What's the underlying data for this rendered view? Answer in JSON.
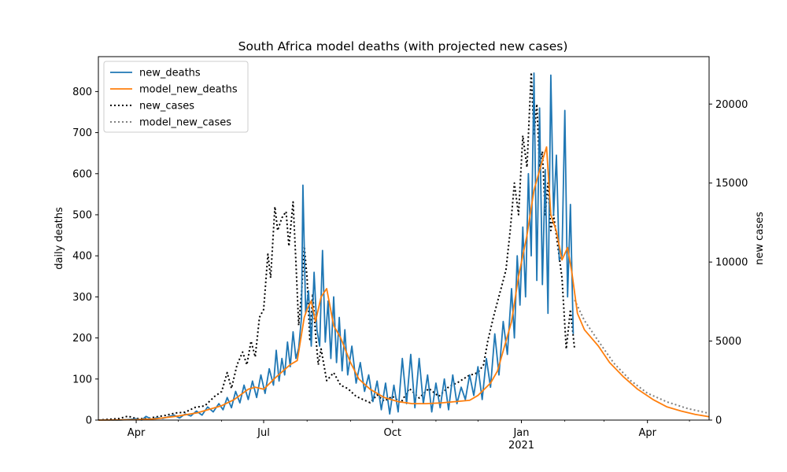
{
  "chart_data": {
    "type": "line",
    "title": "South Africa model deaths (with projected new cases)",
    "ylabel": "daily deaths",
    "y2label": "new cases",
    "xlim": [
      "2020-03-05",
      "2021-05-15"
    ],
    "ylim": [
      0,
      885
    ],
    "y2lim": [
      0,
      23000
    ],
    "x_ticks": [
      {
        "date": "2020-04-01",
        "label": "Apr"
      },
      {
        "date": "2020-07-01",
        "label": "Jul"
      },
      {
        "date": "2020-10-01",
        "label": "Oct"
      },
      {
        "date": "2021-01-01",
        "label": "Jan",
        "sublabel": "2021"
      },
      {
        "date": "2021-04-01",
        "label": "Apr"
      }
    ],
    "y_ticks": [
      0,
      100,
      200,
      300,
      400,
      500,
      600,
      700,
      800
    ],
    "y2_ticks": [
      0,
      5000,
      10000,
      15000,
      20000
    ],
    "legend_position": "top-left",
    "grid": false,
    "colors": {
      "new_deaths": "#1f77b4",
      "model_new_deaths": "#ff7f0e",
      "new_cases": "#000000",
      "model_new_cases": "#808080"
    },
    "series": [
      {
        "name": "new_deaths",
        "axis": "left",
        "style": "solid",
        "colorKey": "new_deaths",
        "points": [
          [
            "2020-03-05",
            0
          ],
          [
            "2020-03-20",
            0
          ],
          [
            "2020-03-28",
            2
          ],
          [
            "2020-04-01",
            3
          ],
          [
            "2020-04-05",
            0
          ],
          [
            "2020-04-08",
            9
          ],
          [
            "2020-04-12",
            2
          ],
          [
            "2020-04-16",
            6
          ],
          [
            "2020-04-20",
            4
          ],
          [
            "2020-04-24",
            8
          ],
          [
            "2020-04-28",
            12
          ],
          [
            "2020-05-02",
            5
          ],
          [
            "2020-05-06",
            15
          ],
          [
            "2020-05-10",
            10
          ],
          [
            "2020-05-14",
            22
          ],
          [
            "2020-05-18",
            12
          ],
          [
            "2020-05-22",
            32
          ],
          [
            "2020-05-26",
            20
          ],
          [
            "2020-05-30",
            40
          ],
          [
            "2020-06-02",
            25
          ],
          [
            "2020-06-05",
            55
          ],
          [
            "2020-06-08",
            30
          ],
          [
            "2020-06-11",
            70
          ],
          [
            "2020-06-14",
            42
          ],
          [
            "2020-06-17",
            85
          ],
          [
            "2020-06-20",
            50
          ],
          [
            "2020-06-23",
            95
          ],
          [
            "2020-06-26",
            55
          ],
          [
            "2020-06-29",
            110
          ],
          [
            "2020-07-02",
            65
          ],
          [
            "2020-07-05",
            125
          ],
          [
            "2020-07-08",
            85
          ],
          [
            "2020-07-10",
            170
          ],
          [
            "2020-07-12",
            95
          ],
          [
            "2020-07-14",
            150
          ],
          [
            "2020-07-16",
            110
          ],
          [
            "2020-07-18",
            190
          ],
          [
            "2020-07-20",
            130
          ],
          [
            "2020-07-22",
            215
          ],
          [
            "2020-07-24",
            150
          ],
          [
            "2020-07-26",
            175
          ],
          [
            "2020-07-28",
            250
          ],
          [
            "2020-07-29",
            572
          ],
          [
            "2020-07-31",
            260
          ],
          [
            "2020-08-02",
            315
          ],
          [
            "2020-08-04",
            180
          ],
          [
            "2020-08-06",
            360
          ],
          [
            "2020-08-08",
            220
          ],
          [
            "2020-08-10",
            180
          ],
          [
            "2020-08-12",
            413
          ],
          [
            "2020-08-14",
            190
          ],
          [
            "2020-08-16",
            290
          ],
          [
            "2020-08-18",
            150
          ],
          [
            "2020-08-20",
            300
          ],
          [
            "2020-08-22",
            140
          ],
          [
            "2020-08-24",
            250
          ],
          [
            "2020-08-26",
            120
          ],
          [
            "2020-08-28",
            220
          ],
          [
            "2020-08-30",
            110
          ],
          [
            "2020-09-02",
            180
          ],
          [
            "2020-09-05",
            90
          ],
          [
            "2020-09-08",
            140
          ],
          [
            "2020-09-11",
            70
          ],
          [
            "2020-09-14",
            110
          ],
          [
            "2020-09-17",
            45
          ],
          [
            "2020-09-20",
            95
          ],
          [
            "2020-09-23",
            25
          ],
          [
            "2020-09-26",
            90
          ],
          [
            "2020-09-29",
            15
          ],
          [
            "2020-10-02",
            85
          ],
          [
            "2020-10-05",
            20
          ],
          [
            "2020-10-08",
            150
          ],
          [
            "2020-10-11",
            40
          ],
          [
            "2020-10-14",
            160
          ],
          [
            "2020-10-17",
            30
          ],
          [
            "2020-10-20",
            150
          ],
          [
            "2020-10-23",
            40
          ],
          [
            "2020-10-26",
            110
          ],
          [
            "2020-10-29",
            20
          ],
          [
            "2020-11-01",
            90
          ],
          [
            "2020-11-04",
            30
          ],
          [
            "2020-11-07",
            100
          ],
          [
            "2020-11-10",
            25
          ],
          [
            "2020-11-13",
            110
          ],
          [
            "2020-11-16",
            40
          ],
          [
            "2020-11-19",
            80
          ],
          [
            "2020-11-22",
            50
          ],
          [
            "2020-11-25",
            110
          ],
          [
            "2020-11-28",
            60
          ],
          [
            "2020-12-01",
            130
          ],
          [
            "2020-12-04",
            50
          ],
          [
            "2020-12-07",
            150
          ],
          [
            "2020-12-10",
            80
          ],
          [
            "2020-12-13",
            210
          ],
          [
            "2020-12-16",
            110
          ],
          [
            "2020-12-19",
            240
          ],
          [
            "2020-12-22",
            160
          ],
          [
            "2020-12-25",
            320
          ],
          [
            "2020-12-27",
            200
          ],
          [
            "2020-12-29",
            400
          ],
          [
            "2020-12-31",
            280
          ],
          [
            "2021-01-02",
            470
          ],
          [
            "2021-01-04",
            300
          ],
          [
            "2021-01-06",
            600
          ],
          [
            "2021-01-08",
            400
          ],
          [
            "2021-01-10",
            845
          ],
          [
            "2021-01-12",
            340
          ],
          [
            "2021-01-14",
            760
          ],
          [
            "2021-01-16",
            330
          ],
          [
            "2021-01-18",
            610
          ],
          [
            "2021-01-20",
            260
          ],
          [
            "2021-01-22",
            840
          ],
          [
            "2021-01-24",
            500
          ],
          [
            "2021-01-26",
            645
          ],
          [
            "2021-01-28",
            390
          ],
          [
            "2021-01-30",
            400
          ],
          [
            "2021-02-01",
            754
          ],
          [
            "2021-02-03",
            300
          ],
          [
            "2021-02-05",
            525
          ],
          [
            "2021-02-07",
            210
          ]
        ]
      },
      {
        "name": "model_new_deaths",
        "axis": "left",
        "style": "solid",
        "colorKey": "model_new_deaths",
        "points": [
          [
            "2020-03-05",
            0
          ],
          [
            "2020-04-01",
            1
          ],
          [
            "2020-04-15",
            3
          ],
          [
            "2020-05-01",
            10
          ],
          [
            "2020-05-15",
            18
          ],
          [
            "2020-06-01",
            35
          ],
          [
            "2020-06-10",
            50
          ],
          [
            "2020-06-20",
            75
          ],
          [
            "2020-06-25",
            80
          ],
          [
            "2020-07-01",
            75
          ],
          [
            "2020-07-10",
            105
          ],
          [
            "2020-07-20",
            135
          ],
          [
            "2020-07-25",
            145
          ],
          [
            "2020-07-30",
            250
          ],
          [
            "2020-08-01",
            270
          ],
          [
            "2020-08-04",
            290
          ],
          [
            "2020-08-07",
            240
          ],
          [
            "2020-08-11",
            300
          ],
          [
            "2020-08-15",
            320
          ],
          [
            "2020-08-20",
            230
          ],
          [
            "2020-08-25",
            200
          ],
          [
            "2020-09-01",
            140
          ],
          [
            "2020-09-07",
            100
          ],
          [
            "2020-09-15",
            75
          ],
          [
            "2020-09-25",
            55
          ],
          [
            "2020-10-05",
            45
          ],
          [
            "2020-10-15",
            40
          ],
          [
            "2020-10-25",
            40
          ],
          [
            "2020-11-05",
            42
          ],
          [
            "2020-11-15",
            45
          ],
          [
            "2020-11-25",
            48
          ],
          [
            "2020-12-01",
            60
          ],
          [
            "2020-12-10",
            90
          ],
          [
            "2020-12-15",
            120
          ],
          [
            "2020-12-20",
            180
          ],
          [
            "2020-12-25",
            240
          ],
          [
            "2020-12-30",
            350
          ],
          [
            "2021-01-05",
            450
          ],
          [
            "2021-01-10",
            560
          ],
          [
            "2021-01-15",
            620
          ],
          [
            "2021-01-19",
            665
          ],
          [
            "2021-01-22",
            500
          ],
          [
            "2021-01-26",
            460
          ],
          [
            "2021-01-30",
            390
          ],
          [
            "2021-02-03",
            420
          ],
          [
            "2021-02-06",
            360
          ],
          [
            "2021-02-10",
            260
          ],
          [
            "2021-02-15",
            220
          ],
          [
            "2021-02-20",
            200
          ],
          [
            "2021-02-25",
            180
          ],
          [
            "2021-03-05",
            140
          ],
          [
            "2021-03-15",
            105
          ],
          [
            "2021-03-25",
            75
          ],
          [
            "2021-04-05",
            50
          ],
          [
            "2021-04-15",
            32
          ],
          [
            "2021-04-25",
            22
          ],
          [
            "2021-05-05",
            14
          ],
          [
            "2021-05-15",
            8
          ]
        ]
      },
      {
        "name": "new_cases",
        "axis": "right",
        "style": "dotted",
        "colorKey": "new_cases",
        "points": [
          [
            "2020-03-05",
            0
          ],
          [
            "2020-03-20",
            100
          ],
          [
            "2020-03-26",
            250
          ],
          [
            "2020-04-01",
            100
          ],
          [
            "2020-04-08",
            80
          ],
          [
            "2020-04-15",
            200
          ],
          [
            "2020-04-22",
            300
          ],
          [
            "2020-04-29",
            450
          ],
          [
            "2020-05-06",
            500
          ],
          [
            "2020-05-13",
            800
          ],
          [
            "2020-05-20",
            900
          ],
          [
            "2020-05-27",
            1500
          ],
          [
            "2020-06-01",
            1800
          ],
          [
            "2020-06-05",
            3000
          ],
          [
            "2020-06-08",
            2000
          ],
          [
            "2020-06-12",
            3500
          ],
          [
            "2020-06-16",
            4300
          ],
          [
            "2020-06-19",
            3500
          ],
          [
            "2020-06-22",
            5000
          ],
          [
            "2020-06-25",
            4000
          ],
          [
            "2020-06-28",
            6500
          ],
          [
            "2020-07-01",
            7000
          ],
          [
            "2020-07-04",
            10500
          ],
          [
            "2020-07-06",
            9000
          ],
          [
            "2020-07-09",
            13500
          ],
          [
            "2020-07-11",
            12000
          ],
          [
            "2020-07-14",
            12800
          ],
          [
            "2020-07-17",
            13200
          ],
          [
            "2020-07-19",
            11000
          ],
          [
            "2020-07-22",
            13800
          ],
          [
            "2020-07-24",
            10000
          ],
          [
            "2020-07-26",
            6000
          ],
          [
            "2020-07-28",
            8000
          ],
          [
            "2020-07-30",
            11000
          ],
          [
            "2020-08-01",
            9000
          ],
          [
            "2020-08-03",
            5000
          ],
          [
            "2020-08-05",
            8000
          ],
          [
            "2020-08-07",
            5500
          ],
          [
            "2020-08-09",
            3500
          ],
          [
            "2020-08-11",
            4500
          ],
          [
            "2020-08-15",
            2500
          ],
          [
            "2020-08-20",
            3000
          ],
          [
            "2020-08-25",
            2200
          ],
          [
            "2020-08-30",
            2000
          ],
          [
            "2020-09-05",
            1500
          ],
          [
            "2020-09-10",
            1300
          ],
          [
            "2020-09-15",
            1100
          ],
          [
            "2020-09-20",
            1600
          ],
          [
            "2020-09-25",
            1200
          ],
          [
            "2020-10-01",
            1500
          ],
          [
            "2020-10-07",
            1100
          ],
          [
            "2020-10-13",
            2000
          ],
          [
            "2020-10-20",
            1400
          ],
          [
            "2020-10-27",
            2000
          ],
          [
            "2020-11-03",
            1500
          ],
          [
            "2020-11-10",
            2100
          ],
          [
            "2020-11-17",
            2400
          ],
          [
            "2020-11-24",
            2800
          ],
          [
            "2020-12-01",
            3000
          ],
          [
            "2020-12-05",
            3500
          ],
          [
            "2020-12-08",
            5000
          ],
          [
            "2020-12-12",
            6500
          ],
          [
            "2020-12-15",
            7500
          ],
          [
            "2020-12-18",
            8500
          ],
          [
            "2020-12-21",
            9500
          ],
          [
            "2020-12-24",
            12000
          ],
          [
            "2020-12-27",
            15000
          ],
          [
            "2020-12-30",
            13000
          ],
          [
            "2021-01-02",
            18000
          ],
          [
            "2021-01-05",
            16000
          ],
          [
            "2021-01-08",
            22000
          ],
          [
            "2021-01-10",
            18000
          ],
          [
            "2021-01-12",
            20000
          ],
          [
            "2021-01-14",
            16000
          ],
          [
            "2021-01-16",
            17000
          ],
          [
            "2021-01-18",
            13000
          ],
          [
            "2021-01-20",
            15000
          ],
          [
            "2021-01-22",
            12000
          ],
          [
            "2021-01-24",
            13000
          ],
          [
            "2021-01-27",
            11000
          ],
          [
            "2021-01-30",
            9000
          ],
          [
            "2021-02-02",
            4500
          ],
          [
            "2021-02-05",
            7000
          ],
          [
            "2021-02-08",
            4500
          ]
        ]
      },
      {
        "name": "model_new_cases",
        "axis": "right",
        "style": "dotted",
        "colorKey": "model_new_cases",
        "points": [
          [
            "2021-02-08",
            7600
          ],
          [
            "2021-02-15",
            6300
          ],
          [
            "2021-02-25",
            5000
          ],
          [
            "2021-03-08",
            3600
          ],
          [
            "2021-03-20",
            2500
          ],
          [
            "2021-04-01",
            1700
          ],
          [
            "2021-04-15",
            1150
          ],
          [
            "2021-04-30",
            720
          ],
          [
            "2021-05-15",
            430
          ]
        ]
      }
    ]
  }
}
